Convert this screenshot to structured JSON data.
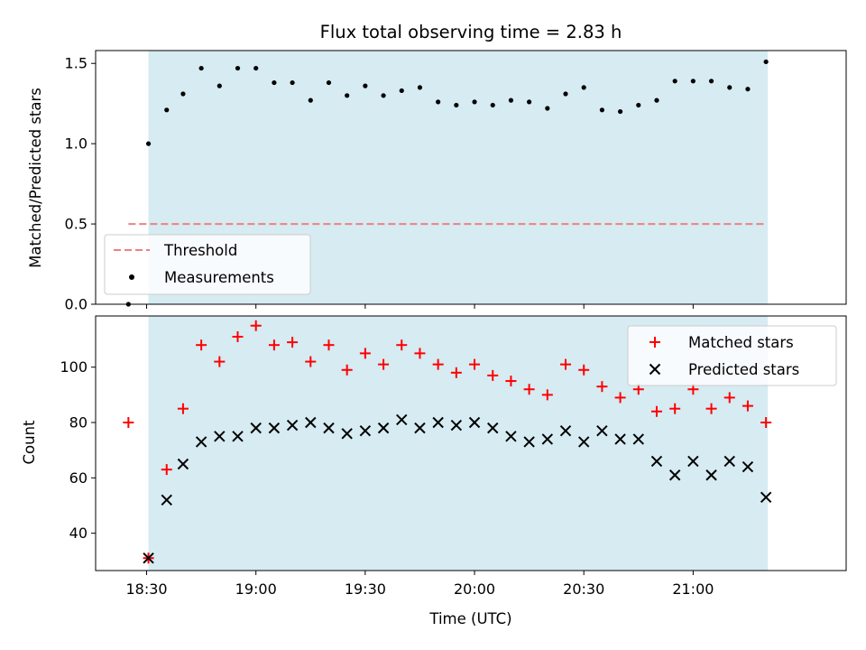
{
  "chart_data": {
    "type": "scatter",
    "title": "Flux total observing time = 2.83 h",
    "xlabel": "Time (UTC)",
    "x_ticks": [
      "18:30",
      "19:00",
      "19:30",
      "20:00",
      "20:30",
      "21:00"
    ],
    "x_tick_minutes": [
      1110,
      1140,
      1170,
      1200,
      1230,
      1260
    ],
    "xlim_minutes": [
      1096,
      1302
    ],
    "observing_window_minutes": [
      1110.5,
      1280.5
    ],
    "window_color": "#add8e6",
    "x_minutes": [
      1105,
      1110.5,
      1115.5,
      1120,
      1125,
      1130,
      1135,
      1140,
      1145,
      1150,
      1155,
      1160,
      1165,
      1170,
      1175,
      1180,
      1185,
      1190,
      1195,
      1200,
      1205,
      1210,
      1215,
      1220,
      1225,
      1230,
      1235,
      1240,
      1245,
      1250,
      1255,
      1260,
      1265,
      1270,
      1275,
      1280
    ],
    "panels": [
      {
        "ylabel": "Matched/Predicted stars",
        "ylim": [
          0,
          1.58
        ],
        "yticks": [
          "0.0",
          "0.5",
          "1.0",
          "1.5"
        ],
        "ytick_values": [
          0,
          0.5,
          1.0,
          1.5
        ],
        "threshold": {
          "value": 0.5,
          "x_range_minutes": [
            1105,
            1280
          ],
          "color": "#f08080"
        },
        "series": [
          {
            "name": "Measurements",
            "color": "#000000",
            "values": [
              0.0,
              1.0,
              1.21,
              1.31,
              1.47,
              1.36,
              1.47,
              1.47,
              1.38,
              1.38,
              1.27,
              1.38,
              1.3,
              1.36,
              1.3,
              1.33,
              1.35,
              1.26,
              1.24,
              1.26,
              1.24,
              1.27,
              1.26,
              1.22,
              1.31,
              1.35,
              1.21,
              1.2,
              1.24,
              1.27,
              1.39,
              1.39,
              1.39,
              1.35,
              1.34,
              1.51
            ]
          }
        ],
        "legend": {
          "placement": "lower-left",
          "threshold_label": "Threshold",
          "measurements_label": "Measurements"
        }
      },
      {
        "ylabel": "Count",
        "ylim": [
          26.5,
          118.5
        ],
        "yticks": [
          "40",
          "60",
          "80",
          "100"
        ],
        "ytick_values": [
          40,
          60,
          80,
          100
        ],
        "series": [
          {
            "name": "Matched stars",
            "color": "#ff0000",
            "marker": "plus",
            "values": [
              80,
              31,
              63,
              85,
              108,
              102,
              111,
              115,
              108,
              109,
              102,
              108,
              99,
              105,
              101,
              108,
              105,
              101,
              98,
              101,
              97,
              95,
              92,
              90,
              101,
              99,
              93,
              89,
              92,
              84,
              85,
              92,
              85,
              89,
              86,
              80
            ]
          },
          {
            "name": "Predicted stars",
            "color": "#000000",
            "marker": "x",
            "values": [
              null,
              31,
              52,
              65,
              73,
              75,
              75,
              78,
              78,
              79,
              80,
              78,
              76,
              77,
              78,
              81,
              78,
              80,
              79,
              80,
              78,
              75,
              73,
              74,
              77,
              73,
              77,
              74,
              74,
              66,
              61,
              66,
              61,
              66,
              64,
              53
            ]
          }
        ],
        "legend": {
          "placement": "upper-right"
        }
      }
    ]
  }
}
